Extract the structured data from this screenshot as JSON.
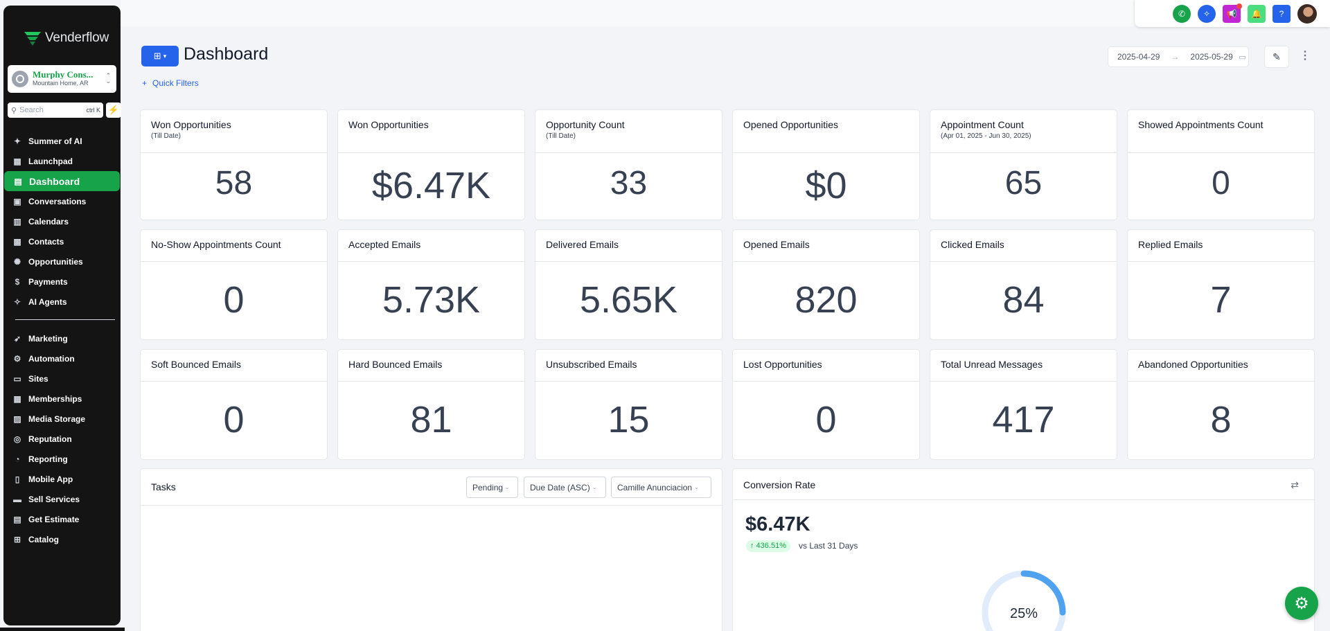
{
  "app": {
    "name": "Venderflow"
  },
  "location": {
    "name": "Murphy Cons...",
    "city": "Mountain Home, AR"
  },
  "search": {
    "placeholder": "Search",
    "shortcut": "ctrl K"
  },
  "sidebar": {
    "items": [
      {
        "label": "Summer of AI",
        "icon": "sparkle-icon"
      },
      {
        "label": "Launchpad",
        "icon": "launchpad-icon"
      },
      {
        "label": "Dashboard",
        "icon": "dashboard-icon",
        "active": true
      },
      {
        "label": "Conversations",
        "icon": "chat-icon"
      },
      {
        "label": "Calendars",
        "icon": "calendar-icon"
      },
      {
        "label": "Contacts",
        "icon": "contacts-icon"
      },
      {
        "label": "Opportunities",
        "icon": "opportunities-icon"
      },
      {
        "label": "Payments",
        "icon": "payments-icon"
      },
      {
        "label": "AI Agents",
        "icon": "ai-agents-icon"
      }
    ],
    "items2": [
      {
        "label": "Marketing",
        "icon": "marketing-icon"
      },
      {
        "label": "Automation",
        "icon": "automation-icon"
      },
      {
        "label": "Sites",
        "icon": "sites-icon"
      },
      {
        "label": "Memberships",
        "icon": "memberships-icon"
      },
      {
        "label": "Media Storage",
        "icon": "media-icon"
      },
      {
        "label": "Reputation",
        "icon": "reputation-icon"
      },
      {
        "label": "Reporting",
        "icon": "reporting-icon"
      },
      {
        "label": "Mobile App",
        "icon": "mobile-icon"
      },
      {
        "label": "Sell Services",
        "icon": "sell-icon"
      },
      {
        "label": "Get Estimate",
        "icon": "estimate-icon"
      },
      {
        "label": "Catalog",
        "icon": "catalog-icon"
      }
    ]
  },
  "header": {
    "title": "Dashboard",
    "quick_filters": "Quick Filters",
    "date_from": "2025-04-29",
    "date_to": "2025-05-29"
  },
  "cards": [
    {
      "title": "Won Opportunities",
      "sub": "(Till Date)",
      "value": "58"
    },
    {
      "title": "Won Opportunities",
      "sub": "",
      "value": "$6.47K"
    },
    {
      "title": "Opportunity Count",
      "sub": "(Till Date)",
      "value": "33"
    },
    {
      "title": "Opened Opportunities",
      "sub": "",
      "value": "$0"
    },
    {
      "title": "Appointment Count",
      "sub": "(Apr 01, 2025 - Jun 30, 2025)",
      "value": "65"
    },
    {
      "title": "Showed Appointments Count",
      "sub": "",
      "value": "0"
    },
    {
      "title": "No-Show Appointments Count",
      "sub": "",
      "value": "0"
    },
    {
      "title": "Accepted Emails",
      "sub": "",
      "value": "5.73K"
    },
    {
      "title": "Delivered Emails",
      "sub": "",
      "value": "5.65K"
    },
    {
      "title": "Opened Emails",
      "sub": "",
      "value": "820"
    },
    {
      "title": "Clicked Emails",
      "sub": "",
      "value": "84"
    },
    {
      "title": "Replied Emails",
      "sub": "",
      "value": "7"
    },
    {
      "title": "Soft Bounced Emails",
      "sub": "",
      "value": "0"
    },
    {
      "title": "Hard Bounced Emails",
      "sub": "",
      "value": "81"
    },
    {
      "title": "Unsubscribed Emails",
      "sub": "",
      "value": "15"
    },
    {
      "title": "Lost Opportunities",
      "sub": "",
      "value": "0"
    },
    {
      "title": "Total Unread Messages",
      "sub": "",
      "value": "417"
    },
    {
      "title": "Abandoned Opportunities",
      "sub": "",
      "value": "8"
    }
  ],
  "tasks": {
    "title": "Tasks",
    "status": "Pending",
    "sort": "Due Date (ASC)",
    "assignee": "Camille Anunciacion"
  },
  "conversion": {
    "title": "Conversion Rate",
    "amount": "$6.47K",
    "change": "↑ 436.51%",
    "vs": "vs Last 31 Days",
    "rate_label": "25%",
    "rate": 0.25
  },
  "colors": {
    "accent": "#16a34a",
    "primary": "#2563eb",
    "sidebar": "#141414"
  }
}
